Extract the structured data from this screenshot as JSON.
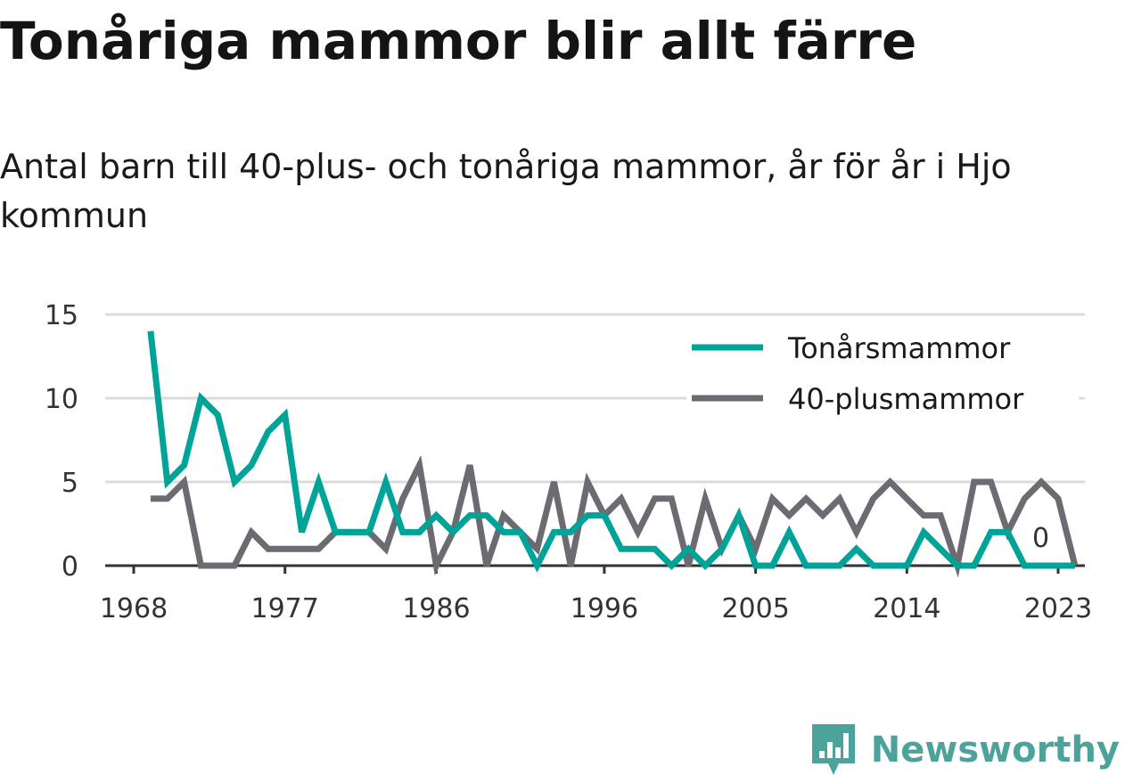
{
  "chart_data": {
    "type": "line",
    "title": "Tonåriga mammor blir allt färre",
    "subtitle": "Antal barn till 40-plus- och tonåriga mammor, år för år i Hjo kommun",
    "xlabel": "",
    "ylabel": "",
    "x": [
      1969,
      1970,
      1971,
      1972,
      1973,
      1974,
      1975,
      1976,
      1977,
      1978,
      1979,
      1980,
      1981,
      1982,
      1983,
      1984,
      1985,
      1986,
      1987,
      1988,
      1989,
      1990,
      1991,
      1992,
      1993,
      1994,
      1995,
      1996,
      1997,
      1998,
      1999,
      2000,
      2001,
      2002,
      2003,
      2004,
      2005,
      2006,
      2007,
      2008,
      2009,
      2010,
      2011,
      2012,
      2013,
      2014,
      2015,
      2016,
      2017,
      2018,
      2019,
      2020,
      2021,
      2022,
      2023,
      2024
    ],
    "xlim": [
      1968,
      2027
    ],
    "ylim": [
      0,
      15
    ],
    "x_ticks": [
      1968,
      1977,
      1986,
      1996,
      2005,
      2014,
      2023
    ],
    "y_ticks": [
      0,
      5,
      10,
      15
    ],
    "grid": true,
    "legend_position": "top-right",
    "series": [
      {
        "name": "Tonårsmammor",
        "color": "#00a398",
        "values": [
          14,
          5,
          6,
          10,
          9,
          5,
          6,
          8,
          9,
          2,
          5,
          2,
          2,
          2,
          5,
          2,
          2,
          3,
          2,
          3,
          3,
          2,
          2,
          0,
          2,
          2,
          3,
          3,
          1,
          1,
          1,
          0,
          1,
          0,
          1,
          3,
          0,
          0,
          2,
          0,
          0,
          0,
          1,
          0,
          0,
          0,
          2,
          1,
          0,
          0,
          2,
          2,
          0,
          0,
          0,
          0
        ]
      },
      {
        "name": "40-plusmammor",
        "color": "#6d6b72",
        "values": [
          4,
          4,
          5,
          0,
          0,
          0,
          2,
          1,
          1,
          1,
          1,
          2,
          2,
          2,
          1,
          4,
          6,
          0,
          2,
          6,
          0,
          3,
          2,
          1,
          5,
          0,
          5,
          3,
          4,
          2,
          4,
          4,
          0,
          4,
          1,
          3,
          1,
          4,
          3,
          4,
          3,
          4,
          2,
          4,
          5,
          4,
          3,
          3,
          0,
          5,
          5,
          2,
          4,
          5,
          4,
          0
        ]
      }
    ],
    "end_label": "0"
  },
  "logo": {
    "text": "Newsworthy",
    "icon": "bar-chart-badge-icon",
    "color": "#4ba39c"
  }
}
